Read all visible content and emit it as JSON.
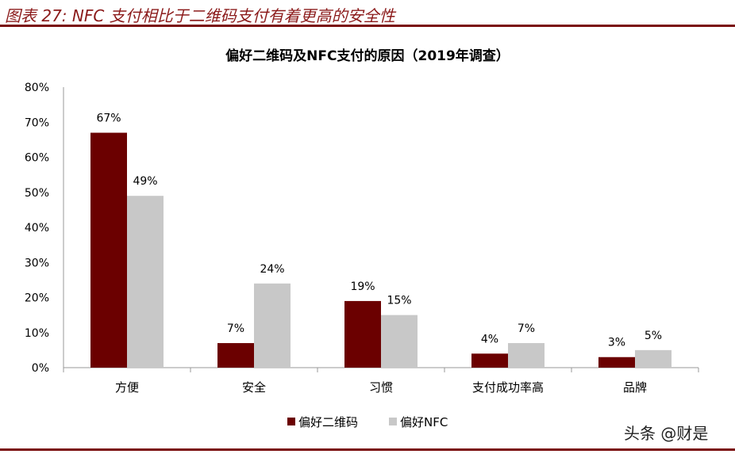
{
  "figure_title": "图表 27: NFC 支付相比于二维码支付有着更高的安全性",
  "watermark": "头条 @财是",
  "chart_data": {
    "type": "bar",
    "title": "偏好二维码及NFC支付的原因（2019年调查）",
    "categories": [
      "方便",
      "安全",
      "习惯",
      "支付成功率高",
      "品牌"
    ],
    "series": [
      {
        "name": "偏好二维码",
        "color": "#6b0000",
        "values": [
          67,
          7,
          19,
          4,
          3
        ]
      },
      {
        "name": "偏好NFC",
        "color": "#c8c8c8",
        "values": [
          49,
          24,
          15,
          7,
          5
        ]
      }
    ],
    "ylim": [
      0,
      80
    ],
    "yticks": [
      "0%",
      "10%",
      "20%",
      "30%",
      "40%",
      "50%",
      "60%",
      "70%",
      "80%"
    ],
    "grid": false,
    "legend": "bottom",
    "xlabel": "",
    "ylabel": ""
  }
}
